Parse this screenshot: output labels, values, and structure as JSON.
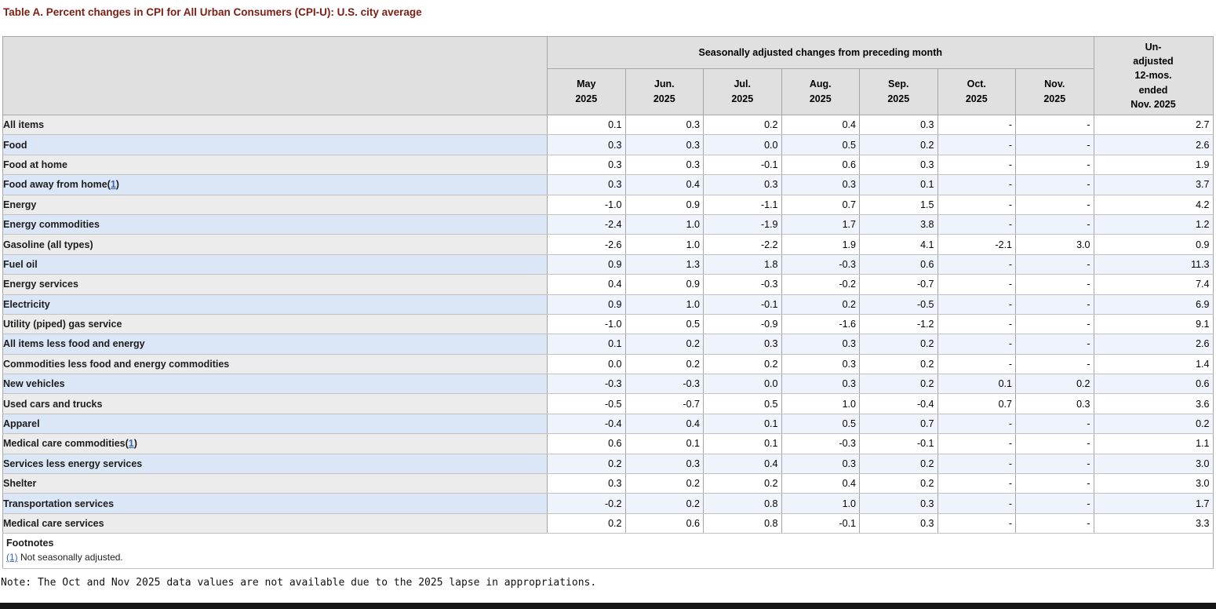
{
  "page": {
    "title": "Table A. Percent changes in CPI for All Urban Consumers (CPI-U): U.S. city average",
    "note": "Note: The Oct and Nov 2025 data values are not available due to the 2025 lapse in appropriations."
  },
  "table": {
    "group_header": "Seasonally adjusted changes from preceding month",
    "unadjusted_lines": [
      "Un-",
      "adjusted",
      "12-mos.",
      "ended",
      "Nov. 2025"
    ],
    "columns": [
      {
        "label": "May",
        "year": "2025"
      },
      {
        "label": "Jun.",
        "year": "2025"
      },
      {
        "label": "Jul.",
        "year": "2025"
      },
      {
        "label": "Aug.",
        "year": "2025"
      },
      {
        "label": "Sep.",
        "year": "2025"
      },
      {
        "label": "Oct.",
        "year": "2025"
      },
      {
        "label": "Nov.",
        "year": "2025"
      }
    ],
    "rows": [
      {
        "label": "All items",
        "indent": 0,
        "footnote_ref": "",
        "values": [
          "0.1",
          "0.3",
          "0.2",
          "0.4",
          "0.3",
          "-",
          "-",
          "2.7"
        ]
      },
      {
        "label": "Food",
        "indent": 1,
        "footnote_ref": "",
        "values": [
          "0.3",
          "0.3",
          "0.0",
          "0.5",
          "0.2",
          "-",
          "-",
          "2.6"
        ]
      },
      {
        "label": "Food at home",
        "indent": 2,
        "footnote_ref": "",
        "values": [
          "0.3",
          "0.3",
          "-0.1",
          "0.6",
          "0.3",
          "-",
          "-",
          "1.9"
        ]
      },
      {
        "label": "Food away from home",
        "indent": 2,
        "footnote_ref": "1",
        "values": [
          "0.3",
          "0.4",
          "0.3",
          "0.3",
          "0.1",
          "-",
          "-",
          "3.7"
        ]
      },
      {
        "label": "Energy",
        "indent": 1,
        "footnote_ref": "",
        "values": [
          "-1.0",
          "0.9",
          "-1.1",
          "0.7",
          "1.5",
          "-",
          "-",
          "4.2"
        ]
      },
      {
        "label": "Energy commodities",
        "indent": 2,
        "footnote_ref": "",
        "values": [
          "-2.4",
          "1.0",
          "-1.9",
          "1.7",
          "3.8",
          "-",
          "-",
          "1.2"
        ]
      },
      {
        "label": "Gasoline (all types)",
        "indent": 3,
        "footnote_ref": "",
        "values": [
          "-2.6",
          "1.0",
          "-2.2",
          "1.9",
          "4.1",
          "-2.1",
          "3.0",
          "0.9"
        ]
      },
      {
        "label": "Fuel oil",
        "indent": 3,
        "footnote_ref": "",
        "values": [
          "0.9",
          "1.3",
          "1.8",
          "-0.3",
          "0.6",
          "-",
          "-",
          "11.3"
        ]
      },
      {
        "label": "Energy services",
        "indent": 2,
        "footnote_ref": "",
        "values": [
          "0.4",
          "0.9",
          "-0.3",
          "-0.2",
          "-0.7",
          "-",
          "-",
          "7.4"
        ]
      },
      {
        "label": "Electricity",
        "indent": 3,
        "footnote_ref": "",
        "values": [
          "0.9",
          "1.0",
          "-0.1",
          "0.2",
          "-0.5",
          "-",
          "-",
          "6.9"
        ]
      },
      {
        "label": "Utility (piped) gas service",
        "indent": 3,
        "footnote_ref": "",
        "values": [
          "-1.0",
          "0.5",
          "-0.9",
          "-1.6",
          "-1.2",
          "-",
          "-",
          "9.1"
        ]
      },
      {
        "label": "All items less food and energy",
        "indent": 1,
        "footnote_ref": "",
        "values": [
          "0.1",
          "0.2",
          "0.3",
          "0.3",
          "0.2",
          "-",
          "-",
          "2.6"
        ]
      },
      {
        "label": "Commodities less food and energy commodities",
        "indent": 2,
        "footnote_ref": "",
        "values": [
          "0.0",
          "0.2",
          "0.2",
          "0.3",
          "0.2",
          "-",
          "-",
          "1.4"
        ]
      },
      {
        "label": "New vehicles",
        "indent": 3,
        "footnote_ref": "",
        "values": [
          "-0.3",
          "-0.3",
          "0.0",
          "0.3",
          "0.2",
          "0.1",
          "0.2",
          "0.6"
        ]
      },
      {
        "label": "Used cars and trucks",
        "indent": 3,
        "footnote_ref": "",
        "values": [
          "-0.5",
          "-0.7",
          "0.5",
          "1.0",
          "-0.4",
          "0.7",
          "0.3",
          "3.6"
        ]
      },
      {
        "label": "Apparel",
        "indent": 3,
        "footnote_ref": "",
        "values": [
          "-0.4",
          "0.4",
          "0.1",
          "0.5",
          "0.7",
          "-",
          "-",
          "0.2"
        ]
      },
      {
        "label": "Medical care commodities",
        "indent": 3,
        "footnote_ref": "1",
        "values": [
          "0.6",
          "0.1",
          "0.1",
          "-0.3",
          "-0.1",
          "-",
          "-",
          "1.1"
        ]
      },
      {
        "label": "Services less energy services",
        "indent": 2,
        "footnote_ref": "",
        "values": [
          "0.2",
          "0.3",
          "0.4",
          "0.3",
          "0.2",
          "-",
          "-",
          "3.0"
        ]
      },
      {
        "label": "Shelter",
        "indent": 3,
        "footnote_ref": "",
        "values": [
          "0.3",
          "0.2",
          "0.2",
          "0.4",
          "0.2",
          "-",
          "-",
          "3.0"
        ]
      },
      {
        "label": "Transportation services",
        "indent": 3,
        "footnote_ref": "",
        "values": [
          "-0.2",
          "0.2",
          "0.8",
          "1.0",
          "0.3",
          "-",
          "-",
          "1.7"
        ]
      },
      {
        "label": "Medical care services",
        "indent": 3,
        "footnote_ref": "",
        "values": [
          "0.2",
          "0.6",
          "0.8",
          "-0.1",
          "0.3",
          "-",
          "-",
          "3.3"
        ]
      }
    ],
    "footnotes": {
      "title": "Footnotes",
      "items": [
        {
          "ref": "(1)",
          "text": "Not seasonally adjusted."
        }
      ]
    }
  },
  "colors": {
    "title_maroon": "#7d1e13",
    "header_bg": "#e0e0e0",
    "row_grey_label": "#ececec",
    "row_white_data": "#ffffff",
    "row_blue_label": "#dbe6f7",
    "row_blue_data": "#eef3fc",
    "link_blue": "#3665bd",
    "footer_bar": "#151515"
  }
}
